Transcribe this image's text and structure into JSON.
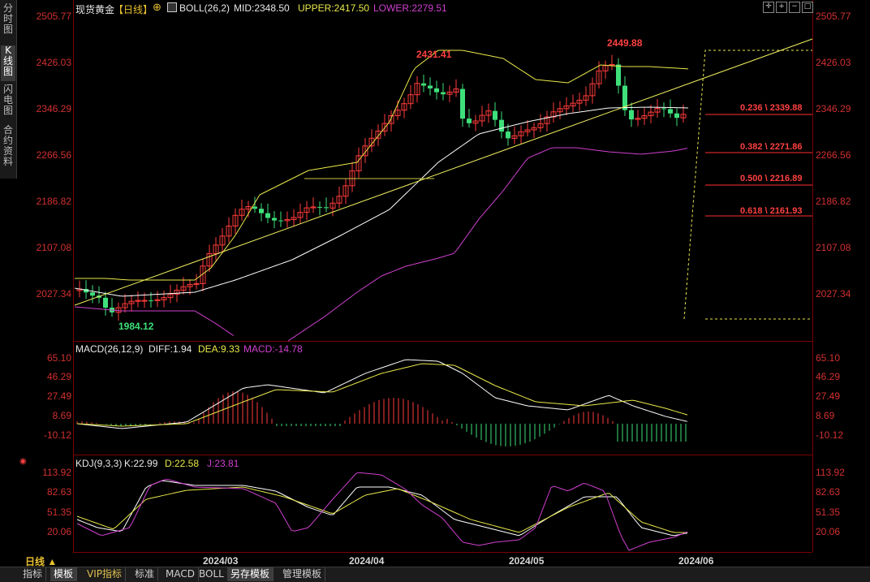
{
  "sidebar_tabs": [
    {
      "label": "分时图"
    },
    {
      "label": "K线图"
    },
    {
      "label": "闪电图"
    },
    {
      "label": "合约资料"
    }
  ],
  "main": {
    "title": "现货黄金",
    "period_label": "【日线】",
    "boll": {
      "label": "BOLL(26,2)",
      "mid": "MID:2348.50",
      "upper": "UPPER:2417.50",
      "lower": "LOWER:2279.51"
    },
    "y_ticks": [
      "2505.77",
      "2426.03",
      "2346.29",
      "2266.56",
      "2186.82",
      "2107.08",
      "2027.34"
    ],
    "high_label": "2449.88",
    "high2_label": "2431.41",
    "low_label": "1984.12",
    "fib": [
      "0.236 \\ 2339.88",
      "0.382 \\ 2271.86",
      "0.500 \\ 2216.89",
      "0.618 \\ 2161.93"
    ]
  },
  "macd": {
    "label": "MACD(26,12,9)",
    "diff": "DIFF:1.94",
    "dea": "DEA:9.33",
    "macd": "MACD:-14.78",
    "y_ticks": [
      "65.10",
      "46.29",
      "27.49",
      "8.69",
      "-10.12"
    ]
  },
  "kdj": {
    "label": "KDJ(9,3,3)",
    "k": "K:22.99",
    "d": "D:22.58",
    "j": "J:23.81",
    "y_ticks": [
      "113.92",
      "82.63",
      "51.35",
      "20.06"
    ]
  },
  "x_axis": [
    "2024/03",
    "2024/04",
    "2024/05",
    "2024/06"
  ],
  "period_selector": "日线 ▲",
  "bottom_tabs": [
    {
      "label": "指标"
    },
    {
      "label": "模板"
    },
    {
      "label": "VIP指标"
    },
    {
      "label": "标准"
    },
    {
      "label": "MACD"
    },
    {
      "label": "BOLL"
    },
    {
      "label": "另存模板"
    },
    {
      "label": "管理模板"
    }
  ],
  "colors": {
    "up": "#ff3b3b",
    "down": "#3ee07a",
    "mid": "#ffffff",
    "upper": "#e8e84a",
    "lower": "#d040d0",
    "grid": "#7a0000",
    "label": "#d23030"
  }
}
